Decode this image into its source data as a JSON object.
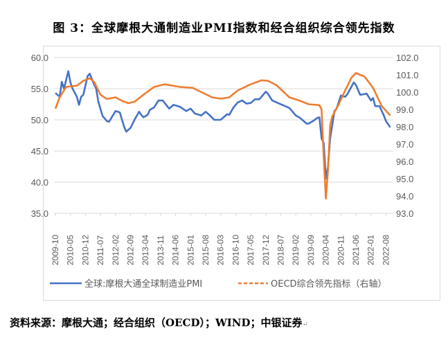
{
  "title": "图 3：全球摩根大通制造业PMI指数和经合组织综合领先指数",
  "source": "资料来源：摩根大通；经合组织（OECD）；WIND；中银证券",
  "chart_data": {
    "type": "line",
    "title": "",
    "xlabel": "",
    "ylabel": "",
    "ylim": [
      35,
      60
    ],
    "y2lim": [
      93,
      102
    ],
    "yticks": [
      "35.0",
      "40.0",
      "45.0",
      "50.0",
      "55.0",
      "60.0"
    ],
    "y2ticks": [
      "93.0",
      "94.0",
      "95.0",
      "96.0",
      "97.0",
      "98.0",
      "99.0",
      "100.0",
      "101.0",
      "102.0"
    ],
    "xticks": [
      "2009-10",
      "2010-05",
      "2010-12",
      "2011-07",
      "2012-02",
      "2012-09",
      "2013-04",
      "2013-11",
      "2014-06",
      "2015-01",
      "2015-08",
      "2016-03",
      "2016-10",
      "2017-05",
      "2017-12",
      "2018-07",
      "2019-02",
      "2019-09",
      "2020-04",
      "2020-11",
      "2021-06",
      "2022-01",
      "2022-08"
    ],
    "grid": true,
    "legend_position": "bottom",
    "series": [
      {
        "name": "全球:摩根大通全球制造业PMI",
        "axis": "left",
        "color": "#4472C4",
        "style": "solid",
        "points": [
          [
            "2009-10",
            54.3
          ],
          [
            "2009-12",
            53.7
          ],
          [
            "2010-01",
            56.1
          ],
          [
            "2010-02",
            55.0
          ],
          [
            "2010-04",
            57.8
          ],
          [
            "2010-05",
            56.0
          ],
          [
            "2010-06",
            55.0
          ],
          [
            "2010-08",
            53.7
          ],
          [
            "2010-09",
            52.4
          ],
          [
            "2010-10",
            53.7
          ],
          [
            "2010-11",
            54.0
          ],
          [
            "2011-01",
            57.0
          ],
          [
            "2011-02",
            57.4
          ],
          [
            "2011-04",
            55.7
          ],
          [
            "2011-05",
            55.0
          ],
          [
            "2011-06",
            52.9
          ],
          [
            "2011-08",
            50.6
          ],
          [
            "2011-10",
            49.8
          ],
          [
            "2011-11",
            49.7
          ],
          [
            "2012-02",
            51.4
          ],
          [
            "2012-04",
            51.2
          ],
          [
            "2012-06",
            48.9
          ],
          [
            "2012-07",
            48.1
          ],
          [
            "2012-09",
            48.7
          ],
          [
            "2012-11",
            50.1
          ],
          [
            "2013-01",
            51.3
          ],
          [
            "2013-02",
            50.8
          ],
          [
            "2013-03",
            50.4
          ],
          [
            "2013-05",
            50.8
          ],
          [
            "2013-06",
            51.6
          ],
          [
            "2013-08",
            52.0
          ],
          [
            "2013-10",
            53.1
          ],
          [
            "2013-12",
            53.1
          ],
          [
            "2014-03",
            51.8
          ],
          [
            "2014-05",
            52.4
          ],
          [
            "2014-08",
            52.1
          ],
          [
            "2014-11",
            51.4
          ],
          [
            "2015-01",
            51.8
          ],
          [
            "2015-03",
            51.0
          ],
          [
            "2015-06",
            50.7
          ],
          [
            "2015-08",
            51.3
          ],
          [
            "2015-10",
            50.7
          ],
          [
            "2015-12",
            50.0
          ],
          [
            "2016-03",
            50.0
          ],
          [
            "2016-06",
            50.9
          ],
          [
            "2016-07",
            50.8
          ],
          [
            "2016-09",
            52.0
          ],
          [
            "2016-11",
            52.8
          ],
          [
            "2017-01",
            53.1
          ],
          [
            "2017-03",
            52.6
          ],
          [
            "2017-05",
            52.7
          ],
          [
            "2017-07",
            53.3
          ],
          [
            "2017-09",
            53.3
          ],
          [
            "2017-12",
            54.5
          ],
          [
            "2018-01",
            54.2
          ],
          [
            "2018-03",
            53.1
          ],
          [
            "2018-05",
            52.8
          ],
          [
            "2018-09",
            52.2
          ],
          [
            "2018-11",
            51.9
          ],
          [
            "2019-02",
            50.7
          ],
          [
            "2019-04",
            50.3
          ],
          [
            "2019-07",
            49.4
          ],
          [
            "2019-08",
            49.4
          ],
          [
            "2019-10",
            49.8
          ],
          [
            "2019-12",
            50.3
          ],
          [
            "2020-01",
            50.4
          ],
          [
            "2020-02",
            47.0
          ],
          [
            "2020-03",
            46.3
          ],
          [
            "2020-04",
            40.6
          ],
          [
            "2020-05",
            42.5
          ],
          [
            "2020-06",
            47.0
          ],
          [
            "2020-08",
            51.4
          ],
          [
            "2020-09",
            51.8
          ],
          [
            "2020-11",
            53.9
          ],
          [
            "2021-01",
            53.7
          ],
          [
            "2021-02",
            54.1
          ],
          [
            "2021-05",
            56.0
          ],
          [
            "2021-06",
            55.6
          ],
          [
            "2021-08",
            54.0
          ],
          [
            "2021-11",
            54.2
          ],
          [
            "2022-01",
            53.1
          ],
          [
            "2022-02",
            53.5
          ],
          [
            "2022-03",
            52.2
          ],
          [
            "2022-05",
            52.2
          ],
          [
            "2022-07",
            50.7
          ],
          [
            "2022-08",
            49.8
          ],
          [
            "2022-10",
            48.8
          ]
        ]
      },
      {
        "name": "OECD综合领先指标（右轴）",
        "axis": "right",
        "color": "#ED7D31",
        "style": "dashed",
        "points": [
          [
            "2009-10",
            99.05
          ],
          [
            "2009-12",
            99.7
          ],
          [
            "2010-03",
            100.3
          ],
          [
            "2010-08",
            100.37
          ],
          [
            "2010-11",
            100.65
          ],
          [
            "2011-02",
            100.8
          ],
          [
            "2011-04",
            100.6
          ],
          [
            "2011-07",
            99.85
          ],
          [
            "2011-10",
            99.6
          ],
          [
            "2012-02",
            99.7
          ],
          [
            "2012-05",
            99.5
          ],
          [
            "2012-08",
            99.36
          ],
          [
            "2012-11",
            99.45
          ],
          [
            "2013-03",
            99.85
          ],
          [
            "2013-08",
            100.3
          ],
          [
            "2014-01",
            100.45
          ],
          [
            "2014-08",
            100.3
          ],
          [
            "2015-02",
            100.25
          ],
          [
            "2015-06",
            100.0
          ],
          [
            "2015-11",
            99.7
          ],
          [
            "2016-03",
            99.62
          ],
          [
            "2016-07",
            99.7
          ],
          [
            "2016-11",
            100.1
          ],
          [
            "2017-05",
            100.45
          ],
          [
            "2017-10",
            100.68
          ],
          [
            "2018-01",
            100.65
          ],
          [
            "2018-05",
            100.4
          ],
          [
            "2018-11",
            99.7
          ],
          [
            "2019-04",
            99.5
          ],
          [
            "2019-08",
            99.3
          ],
          [
            "2020-01",
            99.25
          ],
          [
            "2020-02",
            99.0
          ],
          [
            "2020-03",
            96.25
          ],
          [
            "2020-04",
            93.85
          ],
          [
            "2020-05",
            95.5
          ],
          [
            "2020-06",
            98.1
          ],
          [
            "2020-07",
            98.6
          ],
          [
            "2020-10",
            99.3
          ],
          [
            "2021-01",
            100.1
          ],
          [
            "2021-04",
            100.85
          ],
          [
            "2021-06",
            101.1
          ],
          [
            "2021-10",
            100.9
          ],
          [
            "2022-02",
            100.25
          ],
          [
            "2022-06",
            99.2
          ],
          [
            "2022-10",
            98.65
          ]
        ]
      }
    ]
  }
}
